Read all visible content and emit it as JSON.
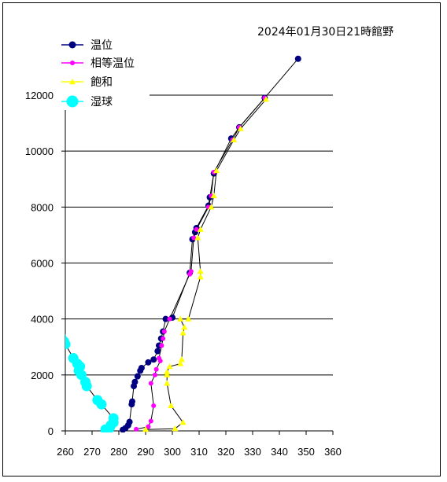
{
  "chart_data": {
    "type": "line",
    "title": "2024年01月30日21時館野",
    "xlabel": "",
    "ylabel": "",
    "xlim": [
      260,
      360
    ],
    "ylim": [
      0,
      12000
    ],
    "x_ticks": [
      260,
      270,
      280,
      290,
      300,
      310,
      320,
      330,
      340,
      350,
      360
    ],
    "y_ticks": [
      0,
      2000,
      4000,
      6000,
      8000,
      10000,
      12000
    ],
    "y_tick_labels": [
      "0",
      "2000",
      "4000",
      "6000",
      "8000",
      "10000",
      "12000"
    ],
    "grid": "horizontal",
    "legend_position": "top-left",
    "series": [
      {
        "name": "温位",
        "color": "#000080",
        "marker": "circle",
        "points": [
          [
            281.5,
            40
          ],
          [
            282.5,
            100
          ],
          [
            283.5,
            200
          ],
          [
            284.0,
            320
          ],
          [
            284.8,
            950
          ],
          [
            285.0,
            1050
          ],
          [
            285.6,
            1600
          ],
          [
            286.0,
            1750
          ],
          [
            287.0,
            1950
          ],
          [
            288.0,
            2150
          ],
          [
            288.5,
            2250
          ],
          [
            291.0,
            2450
          ],
          [
            293.0,
            2550
          ],
          [
            294.5,
            2850
          ],
          [
            295.0,
            3050
          ],
          [
            295.8,
            3300
          ],
          [
            296.5,
            3550
          ],
          [
            297.5,
            4000
          ],
          [
            300.0,
            4050
          ],
          [
            306.5,
            5650
          ],
          [
            307.5,
            6850
          ],
          [
            308.5,
            7100
          ],
          [
            309.0,
            7250
          ],
          [
            313.5,
            8050
          ],
          [
            314.0,
            8350
          ],
          [
            315.5,
            9200
          ],
          [
            322.0,
            10450
          ],
          [
            325.0,
            10850
          ],
          [
            334.5,
            11900
          ],
          [
            347.0,
            13300
          ]
        ]
      },
      {
        "name": "相等温位",
        "color": "#ff00ff",
        "marker": "circle",
        "points": [
          [
            286.5,
            60
          ],
          [
            291.0,
            150
          ],
          [
            292.0,
            350
          ],
          [
            293.0,
            900
          ],
          [
            292.0,
            1700
          ],
          [
            293.5,
            2000
          ],
          [
            294.0,
            2200
          ],
          [
            295.5,
            2500
          ],
          [
            295.0,
            2600
          ],
          [
            296.0,
            3050
          ],
          [
            296.5,
            3300
          ],
          [
            297.0,
            3550
          ],
          [
            299.0,
            4000
          ],
          [
            306.5,
            5600
          ],
          [
            307.0,
            5700
          ],
          [
            308.0,
            6900
          ],
          [
            309.0,
            7200
          ],
          [
            313.5,
            8000
          ],
          [
            314.5,
            8400
          ],
          [
            315.5,
            9250
          ],
          [
            322.5,
            10400
          ],
          [
            325.0,
            10850
          ],
          [
            334.5,
            11900
          ]
        ]
      },
      {
        "name": "飽和",
        "color": "#ffff00",
        "marker": "triangle",
        "points": [
          [
            290.0,
            50
          ],
          [
            301.0,
            80
          ],
          [
            304.0,
            300
          ],
          [
            299.5,
            900
          ],
          [
            298.0,
            1700
          ],
          [
            298.0,
            2000
          ],
          [
            298.0,
            2100
          ],
          [
            299.0,
            2300
          ],
          [
            303.0,
            2400
          ],
          [
            303.5,
            2550
          ],
          [
            304.0,
            3500
          ],
          [
            304.5,
            3700
          ],
          [
            303.0,
            4000
          ],
          [
            306.0,
            4000
          ],
          [
            310.5,
            5500
          ],
          [
            310.5,
            5700
          ],
          [
            309.5,
            6900
          ],
          [
            310.5,
            7200
          ],
          [
            314.5,
            8000
          ],
          [
            315.5,
            8400
          ],
          [
            316.5,
            9300
          ],
          [
            323.0,
            10400
          ],
          [
            325.5,
            10800
          ],
          [
            335.0,
            11850
          ]
        ]
      },
      {
        "name": "湿球",
        "color": "#00ffff",
        "marker": "circle",
        "points": [
          [
            275.0,
            50
          ],
          [
            276.5,
            100
          ],
          [
            277.0,
            200
          ],
          [
            278.0,
            300
          ],
          [
            278.0,
            450
          ],
          [
            273.5,
            950
          ],
          [
            272.0,
            1100
          ],
          [
            268.0,
            1600
          ],
          [
            267.5,
            1750
          ],
          [
            266.0,
            2000
          ],
          [
            265.0,
            2150
          ],
          [
            265.5,
            2300
          ],
          [
            264.5,
            2400
          ],
          [
            263.0,
            2600
          ],
          [
            260.0,
            3100
          ],
          [
            259.5,
            3200
          ],
          [
            258.5,
            3350
          ],
          [
            256.0,
            3750
          ]
        ]
      }
    ]
  }
}
